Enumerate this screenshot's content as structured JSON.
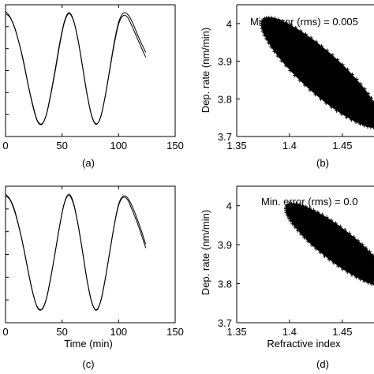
{
  "chart_data": [
    {
      "panel": "a",
      "label": "(a)",
      "type": "line",
      "xlabel": "",
      "ylabel": "",
      "xlim": [
        0,
        150
      ],
      "xticks": [
        "0",
        "50",
        "100",
        "150"
      ],
      "series": [
        {
          "x": [
            0,
            4,
            8,
            12,
            16,
            20,
            24,
            28,
            32,
            36,
            40,
            44,
            48,
            52,
            56,
            60,
            64,
            68,
            72,
            76,
            80,
            84,
            88,
            92,
            96,
            100,
            104,
            108,
            112,
            116,
            120,
            124
          ],
          "y": [
            0.93,
            0.87,
            0.7,
            0.45,
            0.15,
            -0.23,
            -0.55,
            -0.81,
            -0.87,
            -0.73,
            -0.4,
            0.0,
            0.43,
            0.78,
            0.93,
            0.82,
            0.52,
            0.08,
            -0.37,
            -0.72,
            -0.87,
            -0.77,
            -0.44,
            -0.01,
            0.42,
            0.76,
            0.9,
            0.87,
            0.72,
            0.55,
            0.38,
            0.22
          ]
        },
        {
          "x": [
            0,
            4,
            8,
            12,
            16,
            20,
            24,
            28,
            32,
            36,
            40,
            44,
            48,
            52,
            56,
            60,
            64,
            68,
            72,
            76,
            80,
            84,
            88,
            92,
            96,
            100,
            104,
            108,
            112,
            116,
            120,
            124
          ],
          "y": [
            0.97,
            0.88,
            0.71,
            0.45,
            0.13,
            -0.24,
            -0.57,
            -0.82,
            -0.88,
            -0.72,
            -0.38,
            0.03,
            0.46,
            0.8,
            0.95,
            0.83,
            0.51,
            0.07,
            -0.38,
            -0.73,
            -0.88,
            -0.76,
            -0.43,
            0.01,
            0.45,
            0.79,
            0.94,
            0.92,
            0.8,
            0.62,
            0.45,
            0.3
          ]
        }
      ]
    },
    {
      "panel": "b",
      "label": "(b)",
      "type": "scatter",
      "ylabel": "Dep. rate (nm/min)",
      "xlabel": "",
      "xlim": [
        1.35,
        1.5
      ],
      "ylim": [
        3.7,
        4.05
      ],
      "xticks": [
        "1.35",
        "1.4",
        "1.45"
      ],
      "yticks": [
        "3.7",
        "3.8",
        "3.9",
        "4"
      ],
      "annotation": "Min. error (rms) = 0.005",
      "region": {
        "center": [
          1.43,
          3.87
        ],
        "x_range": [
          1.39,
          1.5
        ],
        "y_range": [
          3.72,
          4.0
        ]
      }
    },
    {
      "panel": "c",
      "label": "(c)",
      "type": "line",
      "xlabel": "Time (min)",
      "ylabel": "",
      "xlim": [
        0,
        150
      ],
      "xticks": [
        "0",
        "50",
        "100",
        "150"
      ],
      "series": [
        {
          "x": [
            0,
            4,
            8,
            12,
            16,
            20,
            24,
            28,
            32,
            36,
            40,
            44,
            48,
            52,
            56,
            60,
            64,
            68,
            72,
            76,
            80,
            84,
            88,
            92,
            96,
            100,
            104,
            108,
            112,
            116,
            120,
            124
          ],
          "y": [
            0.92,
            0.86,
            0.68,
            0.42,
            0.1,
            -0.27,
            -0.6,
            -0.82,
            -0.86,
            -0.7,
            -0.36,
            0.04,
            0.46,
            0.8,
            0.93,
            0.8,
            0.48,
            0.05,
            -0.4,
            -0.74,
            -0.87,
            -0.74,
            -0.4,
            0.02,
            0.44,
            0.77,
            0.9,
            0.86,
            0.7,
            0.52,
            0.32,
            0.1
          ]
        },
        {
          "x": [
            0,
            4,
            8,
            12,
            16,
            20,
            24,
            28,
            32,
            36,
            40,
            44,
            48,
            52,
            56,
            60,
            64,
            68,
            72,
            76,
            80,
            84,
            88,
            92,
            96,
            100,
            104,
            108,
            112,
            116,
            120,
            124
          ],
          "y": [
            0.95,
            0.87,
            0.7,
            0.43,
            0.11,
            -0.26,
            -0.59,
            -0.83,
            -0.87,
            -0.71,
            -0.37,
            0.05,
            0.47,
            0.81,
            0.95,
            0.82,
            0.49,
            0.06,
            -0.39,
            -0.73,
            -0.88,
            -0.75,
            -0.41,
            0.03,
            0.45,
            0.79,
            0.92,
            0.89,
            0.76,
            0.58,
            0.38,
            0.16
          ]
        }
      ]
    },
    {
      "panel": "d",
      "label": "(d)",
      "type": "scatter",
      "ylabel": "Dep. rate (nm/min)",
      "xlabel": "Refractive index",
      "xlim": [
        1.35,
        1.5
      ],
      "ylim": [
        3.7,
        4.05
      ],
      "xticks": [
        "1.35",
        "1.4",
        "1.45"
      ],
      "yticks": [
        "3.7",
        "3.8",
        "3.9",
        "4"
      ],
      "annotation": "Min. error (rms) = 0.0",
      "region": {
        "center": [
          1.445,
          3.9
        ],
        "x_range": [
          1.405,
          1.5
        ],
        "y_range": [
          3.8,
          4.0
        ]
      }
    }
  ]
}
